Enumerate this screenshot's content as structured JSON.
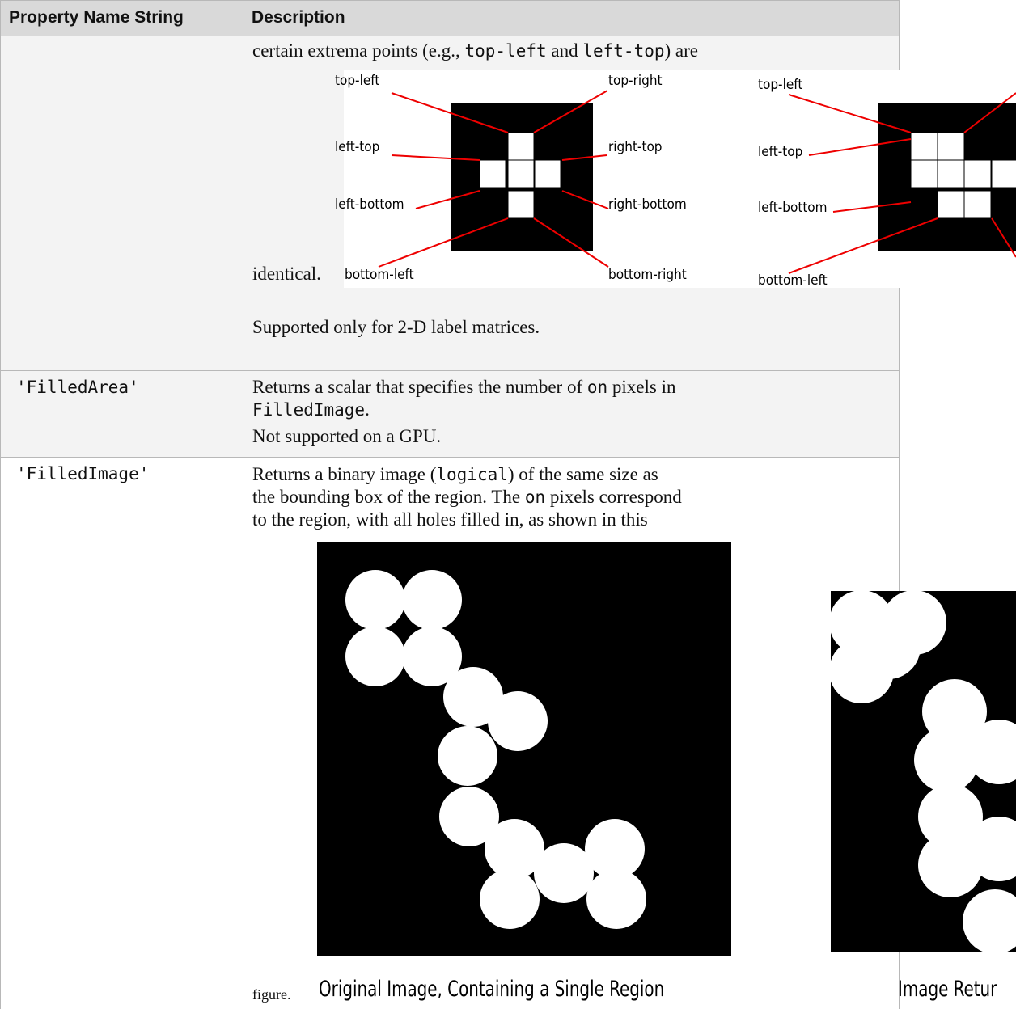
{
  "header": {
    "name": "Property Name String",
    "description": "Description"
  },
  "rows": [
    {
      "description": {
        "intro": [
          "certain extrema points (e.g., ",
          "top-left",
          " and ",
          "left-top",
          ") are"
        ],
        "figure_labels": {
          "left": [
            "top-left",
            "top-right",
            "left-top",
            "right-top",
            "left-bottom",
            "right-bottom",
            "bottom-left",
            "bottom-right"
          ],
          "right": [
            "top-left",
            "left-top",
            "left-bottom",
            "bottom-left"
          ]
        },
        "after_figure": "identical.",
        "note": "Supported only for 2-D label matrices."
      }
    },
    {
      "name": "'FilledArea'",
      "description": {
        "text": [
          "Returns a scalar that specifies the number of ",
          "on",
          " pixels in",
          "FilledImage",
          "."
        ],
        "note": "Not supported on a GPU."
      }
    },
    {
      "name": "'FilledImage'",
      "description": {
        "lines": [
          [
            "Returns a binary image (",
            "logical",
            ") of the same size as"
          ],
          [
            "the bounding box of the region. The ",
            "on",
            " pixels correspond"
          ],
          [
            "to the region, with all holes filled in, as shown in this"
          ]
        ],
        "after_figure": "figure.",
        "captions": [
          "Original Image, Containing a Single Region",
          "Image Retur"
        ]
      }
    }
  ]
}
